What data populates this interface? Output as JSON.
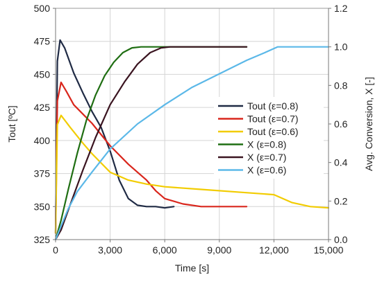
{
  "chart_data": {
    "type": "line",
    "xlabel": "Time [s]",
    "ylabel_left": "Tout [ºC]",
    "ylabel_right": "Avg. Conversion, X [-]",
    "xlim": [
      0,
      15000
    ],
    "ylim_left": [
      325,
      500
    ],
    "ylim_right": [
      0.0,
      1.2
    ],
    "x_ticks": [
      0,
      3000,
      6000,
      9000,
      12000,
      15000
    ],
    "x_tick_labels": [
      "0",
      "3,000",
      "6,000",
      "9,000",
      "12,000",
      "15,000"
    ],
    "y_left_ticks": [
      325,
      350,
      375,
      400,
      425,
      450,
      475,
      500
    ],
    "y_left_tick_labels": [
      "325",
      "350",
      "375",
      "400",
      "425",
      "450",
      "475",
      "500"
    ],
    "y_right_ticks": [
      0.0,
      0.2,
      0.4,
      0.6,
      0.8,
      1.0,
      1.2
    ],
    "y_right_tick_labels": [
      "0.0",
      "0.2",
      "0.4",
      "0.6",
      "0.8",
      "1.0",
      "1.2"
    ],
    "grid": true,
    "legend_position": "center-right",
    "series": [
      {
        "name": "Tout (ε=0.8)",
        "axis": "left",
        "color": "#1f2a44",
        "x": [
          0,
          100,
          250,
          500,
          1000,
          1500,
          2000,
          2500,
          3000,
          3500,
          4000,
          4500,
          5000,
          5500,
          6000,
          6500
        ],
        "y": [
          330,
          460,
          476,
          470,
          451,
          436,
          422,
          410,
          392,
          370,
          356,
          351,
          350,
          350,
          349,
          350
        ]
      },
      {
        "name": "Tout (ε=0.7)",
        "axis": "left",
        "color": "#d9261c",
        "x": [
          0,
          100,
          300,
          600,
          1000,
          1500,
          2000,
          3000,
          4000,
          5000,
          5500,
          6000,
          7000,
          8000,
          9000,
          10500
        ],
        "y": [
          330,
          430,
          444,
          437,
          427,
          420,
          413,
          396,
          382,
          370,
          362,
          356,
          352,
          350,
          350,
          350
        ]
      },
      {
        "name": "Tout (ε=0.6)",
        "axis": "left",
        "color": "#f2cc00",
        "x": [
          0,
          100,
          300,
          800,
          1500,
          2000,
          3000,
          4000,
          5000,
          6000,
          8000,
          10000,
          12000,
          13000,
          14000,
          15000
        ],
        "y": [
          330,
          412,
          419,
          410,
          398,
          390,
          376,
          370,
          367,
          365,
          363,
          361,
          359,
          353,
          350,
          349
        ]
      },
      {
        "name": "X (ε=0.8)",
        "axis": "right",
        "color": "#1f6e12",
        "x": [
          0,
          300,
          700,
          1200,
          1700,
          2200,
          2700,
          3200,
          3700,
          4200,
          4700,
          5000,
          10500
        ],
        "y": [
          0.0,
          0.1,
          0.26,
          0.45,
          0.62,
          0.75,
          0.85,
          0.92,
          0.97,
          0.995,
          1.0,
          1.0,
          1.0
        ]
      },
      {
        "name": "X (ε=0.7)",
        "axis": "right",
        "color": "#3a1420",
        "x": [
          0,
          300,
          800,
          1500,
          2200,
          3000,
          3800,
          4500,
          5200,
          5800,
          6300,
          10500
        ],
        "y": [
          0.0,
          0.05,
          0.18,
          0.36,
          0.53,
          0.7,
          0.82,
          0.91,
          0.97,
          0.995,
          1.0,
          1.0
        ]
      },
      {
        "name": "X (ε=0.6)",
        "axis": "right",
        "color": "#5bb8e8",
        "x": [
          0,
          300,
          700,
          1200,
          2000,
          3000,
          4500,
          6000,
          7500,
          9000,
          10500,
          11500,
          12200,
          13000,
          15000
        ],
        "y": [
          0.0,
          0.07,
          0.16,
          0.25,
          0.35,
          0.47,
          0.6,
          0.7,
          0.79,
          0.86,
          0.93,
          0.97,
          1.0,
          1.0,
          1.0
        ]
      }
    ]
  }
}
